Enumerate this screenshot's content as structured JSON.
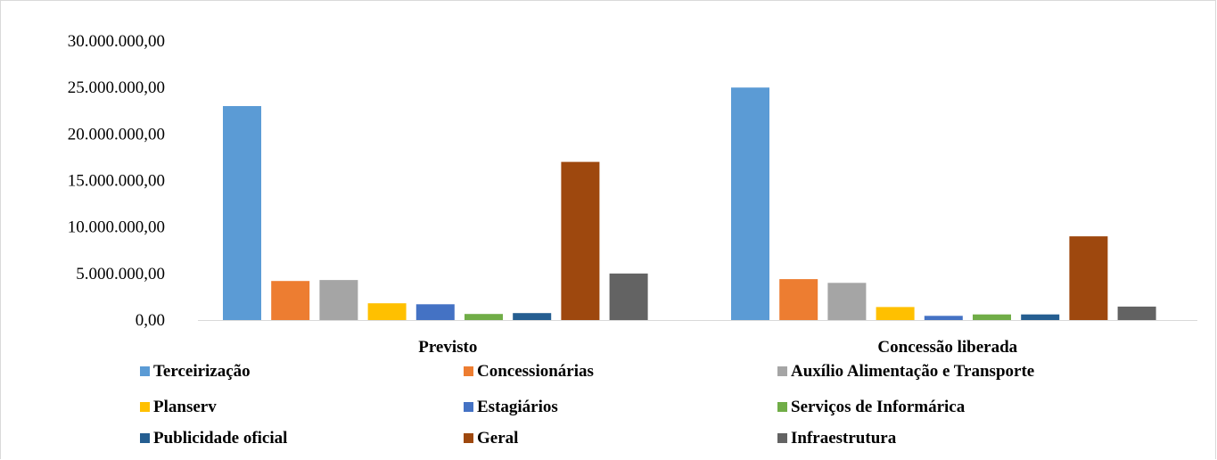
{
  "chart_data": {
    "type": "bar",
    "title": "",
    "xlabel": "",
    "ylabel": "",
    "categories": [
      "Previsto",
      "Concessão liberada"
    ],
    "ylim": [
      0,
      30000000
    ],
    "yticks": [
      0,
      5000000,
      10000000,
      15000000,
      20000000,
      25000000,
      30000000
    ],
    "ytick_labels": [
      "0,00",
      "5.000.000,00",
      "10.000.000,00",
      "15.000.000,00",
      "20.000.000,00",
      "25.000.000,00",
      "30.000.000,00"
    ],
    "grid": false,
    "legend_position": "bottom",
    "series": [
      {
        "name": "Terceirização",
        "color": "#5b9bd5",
        "values": [
          23000000,
          25000000
        ]
      },
      {
        "name": "Concessionárias",
        "color": "#ed7d31",
        "values": [
          4200000,
          4400000
        ]
      },
      {
        "name": "Auxílio Alimentação e Transporte",
        "color": "#a5a5a5",
        "values": [
          4300000,
          4000000
        ]
      },
      {
        "name": "Planserv",
        "color": "#ffc000",
        "values": [
          1800000,
          1400000
        ]
      },
      {
        "name": "Estagiários",
        "color": "#4472c4",
        "values": [
          1700000,
          450000
        ]
      },
      {
        "name": "Serviços de Informárica",
        "color": "#70ad47",
        "values": [
          650000,
          600000
        ]
      },
      {
        "name": "Publicidade oficial",
        "color": "#255e91",
        "values": [
          750000,
          600000
        ]
      },
      {
        "name": "Geral",
        "color": "#9e480e",
        "values": [
          17000000,
          9000000
        ]
      },
      {
        "name": "Infraestrutura",
        "color": "#636363",
        "values": [
          5000000,
          1450000
        ]
      }
    ]
  }
}
